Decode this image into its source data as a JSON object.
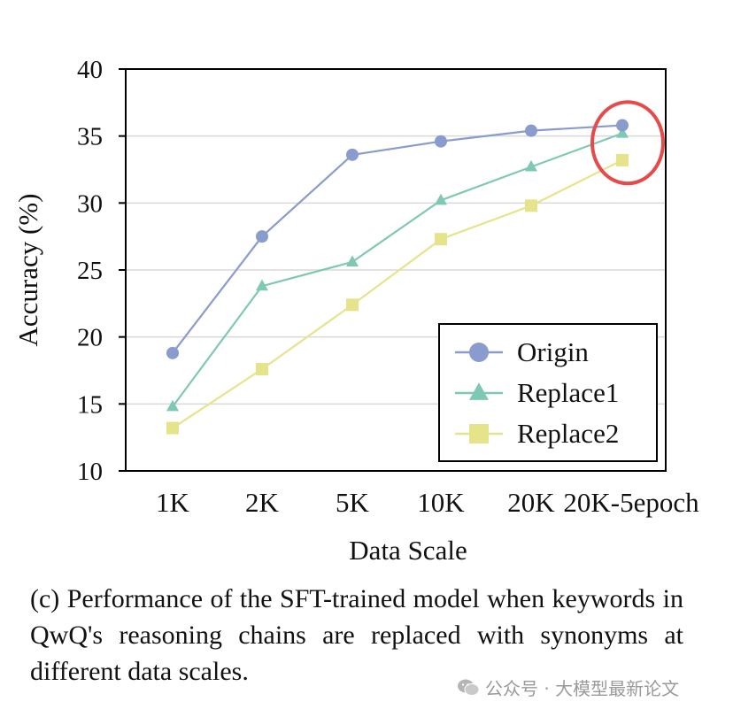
{
  "chart_data": {
    "type": "line",
    "title": "",
    "xlabel": "Data Scale",
    "ylabel": "Accuracy (%)",
    "categories": [
      "1K",
      "2K",
      "5K",
      "10K",
      "20K",
      "20K-5epoch"
    ],
    "ylim": [
      10,
      40
    ],
    "yticks": [
      10,
      15,
      20,
      25,
      30,
      35,
      40
    ],
    "grid": true,
    "legend_position": "bottom-right",
    "series": [
      {
        "name": "Origin",
        "marker": "circle",
        "color": "#8a9ccd",
        "values": [
          18.8,
          27.5,
          33.6,
          34.6,
          35.4,
          35.8
        ]
      },
      {
        "name": "Replace1",
        "marker": "triangle",
        "color": "#7ec8b4",
        "values": [
          14.8,
          23.8,
          25.6,
          30.2,
          32.7,
          35.2
        ]
      },
      {
        "name": "Replace2",
        "marker": "square",
        "color": "#e6e48a",
        "values": [
          13.2,
          17.6,
          22.4,
          27.3,
          29.8,
          33.2
        ]
      }
    ],
    "annotation": {
      "type": "ellipse",
      "color": "#e64a4a",
      "target_category": "20K-5epoch"
    }
  },
  "caption": "(c) Performance of the SFT-trained model when keywords in QwQ's reasoning chains are replaced with synonyms at different data scales.",
  "watermark": {
    "text": "公众号 · 大模型最新论文",
    "icon": "wechat-icon"
  }
}
